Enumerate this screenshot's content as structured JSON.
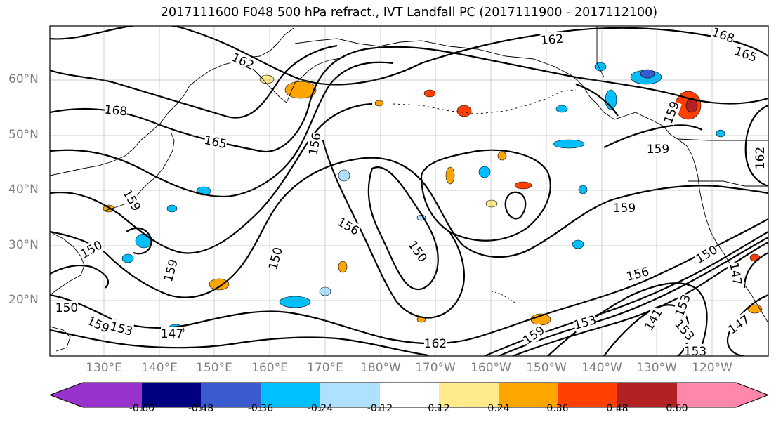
{
  "title": "2017111600 F048 500 hPa refract., IVT Landfall PC (2017111900 - 2017112100)",
  "latitude_labels": [
    "60°N",
    "50°N",
    "40°N",
    "30°N",
    "20°N"
  ],
  "longitude_labels": [
    "130°E",
    "140°E",
    "150°E",
    "160°E",
    "170°E",
    "180°W",
    "170°W",
    "160°W",
    "150°W",
    "140°W",
    "130°W",
    "120°W"
  ],
  "colorbar": {
    "colors": [
      "#9932cc",
      "#000080",
      "#3a5bcf",
      "#00bfff",
      "#b0e0ff",
      "#ffffff",
      "#ffeb8a",
      "#ffa500",
      "#ff4000",
      "#b22222",
      "#ff88aa"
    ],
    "tick_labels": [
      "-0.60",
      "-0.48",
      "-0.36",
      "-0.24",
      "-0.12",
      "0.12",
      "0.24",
      "0.36",
      "0.48",
      "0.60"
    ]
  },
  "contour_labels": [
    "162",
    "168",
    "165",
    "162",
    "168",
    "165",
    "156",
    "159",
    "159",
    "156",
    "159",
    "150",
    "159",
    "150",
    "153",
    "150",
    "150",
    "147",
    "162",
    "159",
    "153",
    "156",
    "150",
    "153",
    "141",
    "153",
    "153",
    "147",
    "147",
    "159",
    "159",
    "162"
  ]
}
